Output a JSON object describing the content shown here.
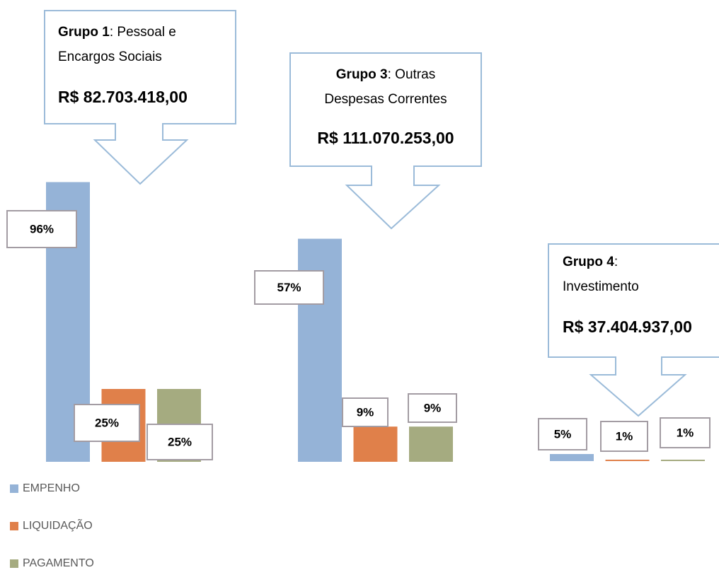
{
  "chart_data": [
    {
      "type": "bar",
      "group": "Grupo 1",
      "title": ": Pessoal e Encargos Sociais",
      "amount": "R$ 82.703.418,00",
      "ylim": [
        0,
        100
      ],
      "series": [
        {
          "name": "EMPENHO",
          "color": "#95b3d7",
          "values": [
            96
          ],
          "value_labels": [
            "96%"
          ]
        },
        {
          "name": "LIQUIDAÇÃO",
          "color": "#e0804a",
          "values": [
            25
          ],
          "value_labels": [
            "25%"
          ]
        },
        {
          "name": "PAGAMENTO",
          "color": "#a5ab80",
          "values": [
            25
          ],
          "value_labels": [
            "25%"
          ]
        }
      ]
    },
    {
      "type": "bar",
      "group": "Grupo 3",
      "title": ": Outras Despesas Correntes",
      "amount": "R$ 111.070.253,00",
      "ylim": [
        0,
        60
      ],
      "series": [
        {
          "name": "EMPENHO",
          "color": "#95b3d7",
          "values": [
            57
          ],
          "value_labels": [
            "57%"
          ]
        },
        {
          "name": "LIQUIDAÇÃO",
          "color": "#e0804a",
          "values": [
            9
          ],
          "value_labels": [
            "9%"
          ]
        },
        {
          "name": "PAGAMENTO",
          "color": "#a5ab80",
          "values": [
            9
          ],
          "value_labels": [
            "9%"
          ]
        }
      ]
    },
    {
      "type": "bar",
      "group": "Grupo 4",
      "title": ": Investimento",
      "amount": "R$ 37.404.937,00",
      "ylim": [
        0,
        100
      ],
      "series": [
        {
          "name": "EMPENHO",
          "color": "#95b3d7",
          "values": [
            5
          ],
          "value_labels": [
            "5%"
          ]
        },
        {
          "name": "LIQUIDAÇÃO",
          "color": "#e0804a",
          "values": [
            1
          ],
          "value_labels": [
            "1%"
          ]
        },
        {
          "name": "PAGAMENTO",
          "color": "#a5ab80",
          "values": [
            1
          ],
          "value_labels": [
            "1%"
          ]
        }
      ]
    }
  ]
}
